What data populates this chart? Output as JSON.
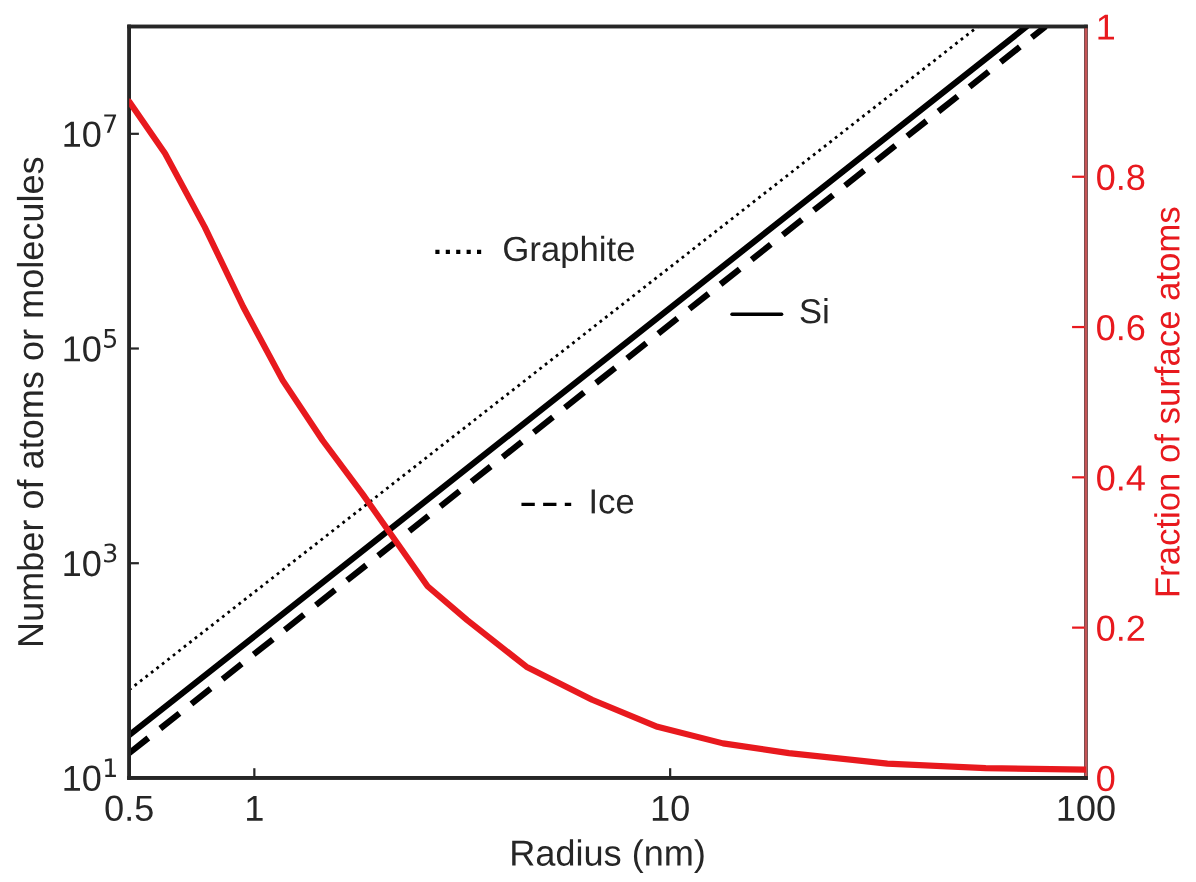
{
  "chart_data": {
    "type": "line",
    "xlabel": "Radius (nm)",
    "ylabel": "Number of atoms or molecules",
    "y2label": "Fraction of surface atoms",
    "log": "xy",
    "xlim": [
      0.5,
      100
    ],
    "xticks": [
      0.5,
      1,
      10,
      100
    ],
    "ylim": [
      10,
      100000000
    ],
    "yticks": [
      {
        "value": 10,
        "label": "10$^{1}$"
      },
      {
        "value": 1000,
        "label": "10$^{3}$"
      },
      {
        "value": 100000,
        "label": "10$^{5}$"
      },
      {
        "value": 10000000,
        "label": "10$^{7}$"
      }
    ],
    "y2lim": [
      0,
      1
    ],
    "y2ticks": [
      0,
      0.2,
      0.4,
      0.6,
      0.8,
      1
    ],
    "grid": false,
    "legend": "center",
    "series": [
      {
        "name": "Graphite",
        "color": "#000000",
        "line_style": "dotted",
        "x": [
          0.5,
          55
        ],
        "values": [
          66,
          100000000
        ]
      },
      {
        "name": "Si",
        "color": "#000000",
        "line_style": "solid",
        "x": [
          0.5,
          72
        ],
        "values": [
          25,
          100000000
        ]
      },
      {
        "name": "Ice",
        "color": "#000000",
        "line_style": "dashed",
        "x": [
          0.5,
          80
        ],
        "values": [
          17,
          100000000
        ]
      },
      {
        "color": "#e8191e",
        "line_style": "solid",
        "axis": "y2",
        "x": [
          0.5,
          0.61,
          0.76,
          0.94,
          1.17,
          1.46,
          1.82,
          2.61,
          3.25,
          4.51,
          6.49,
          9.32,
          13.4,
          19.3,
          33.3,
          57.4,
          100
        ],
        "values": [
          0.9,
          0.831,
          0.733,
          0.627,
          0.529,
          0.449,
          0.378,
          0.255,
          0.21,
          0.148,
          0.104,
          0.068,
          0.046,
          0.033,
          0.019,
          0.013,
          0.011
        ]
      }
    ]
  }
}
